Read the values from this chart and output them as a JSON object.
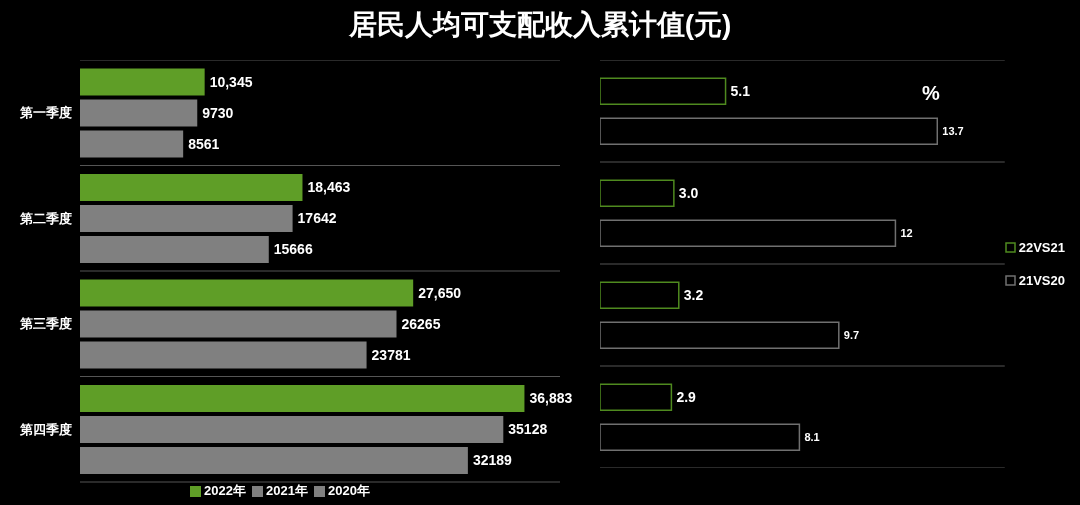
{
  "chart_data": [
    {
      "type": "bar",
      "title": "居民人均可支配收入累计值(元)",
      "orientation": "horizontal",
      "categories": [
        "第一季度",
        "第二季度",
        "第三季度",
        "第四季度"
      ],
      "series": [
        {
          "name": "2022年",
          "color": "#5f9e27",
          "values": [
            10345,
            18463,
            27650,
            36883
          ],
          "value_labels": [
            "10,345",
            "18,463",
            "27,650",
            "36,883"
          ]
        },
        {
          "name": "2021年",
          "color": "#808080",
          "values": [
            9730,
            17642,
            26265,
            35128
          ],
          "value_labels": [
            "9730",
            "17642",
            "26265",
            "35128"
          ]
        },
        {
          "name": "2020年",
          "color": "#808080",
          "values": [
            8561,
            15666,
            23781,
            32189
          ],
          "value_labels": [
            "8561",
            "15666",
            "23781",
            "32189"
          ]
        }
      ],
      "legend": "bottom",
      "grid": "y",
      "tick_labels": "y"
    },
    {
      "type": "bar",
      "orientation": "horizontal",
      "categories": [
        null,
        null,
        null,
        null
      ],
      "series": [
        {
          "name": "22VS21",
          "color": "#4f8a1f",
          "values": [
            5.1,
            3.0,
            3.2,
            2.9
          ],
          "value_labels": [
            "5.1",
            "3.0",
            "3.2",
            "2.9"
          ]
        },
        {
          "name": "21VS20",
          "color": "#707070",
          "values": [
            13.7,
            12,
            9.7,
            8.1
          ],
          "value_labels": [
            "13.7",
            "12",
            "9.7",
            "8.1"
          ]
        }
      ],
      "legend": "right",
      "grid": "y",
      "tick_labels": false,
      "annotations": [
        "%"
      ]
    }
  ]
}
